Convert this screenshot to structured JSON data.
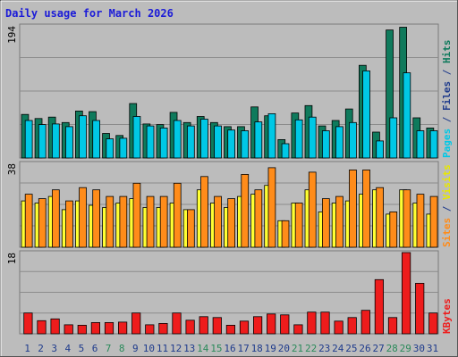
{
  "chart_data": {
    "type": "bar",
    "title": "Daily usage for March 2026",
    "categories": [
      "1",
      "2",
      "3",
      "4",
      "5",
      "6",
      "7",
      "8",
      "9",
      "10",
      "11",
      "12",
      "13",
      "14",
      "15",
      "16",
      "17",
      "18",
      "19",
      "20",
      "21",
      "22",
      "23",
      "24",
      "25",
      "26",
      "27",
      "28",
      "29",
      "30",
      "31"
    ],
    "weekend_days": [
      "7",
      "8",
      "14",
      "15",
      "21",
      "22",
      "28",
      "29"
    ],
    "panels": [
      {
        "max_label": "194",
        "ylim": [
          0,
          194
        ],
        "series": [
          {
            "name": "Hits",
            "color": "#0f7a5c",
            "values": [
              64,
              58,
              60,
              52,
              69,
              68,
              36,
              33,
              80,
              50,
              49,
              67,
              52,
              61,
              52,
              46,
              46,
              75,
              62,
              27,
              66,
              77,
              47,
              55,
              72,
              136,
              38,
              188,
              192,
              59,
              44
            ]
          },
          {
            "name": "Files",
            "color": "#00c8e6",
            "values": [
              55,
              49,
              50,
              46,
              62,
              55,
              28,
              29,
              61,
              47,
              44,
              55,
              47,
              57,
              47,
              41,
              40,
              53,
              65,
              21,
              56,
              60,
              40,
              46,
              52,
              128,
              25,
              59,
              125,
              40,
              40
            ]
          },
          {
            "name": "Pages",
            "color": "#00c8e6",
            "values": []
          }
        ],
        "side_label": [
          {
            "text": "Pages",
            "color": "#00c8e6"
          },
          {
            "text": " / ",
            "color": "#1f3b8c"
          },
          {
            "text": "Files",
            "color": "#1f3b8c"
          },
          {
            "text": " / ",
            "color": "#1f3b8c"
          },
          {
            "text": "Hits",
            "color": "#0f7a5c"
          }
        ]
      },
      {
        "max_label": "38",
        "ylim": [
          0,
          38
        ],
        "series": [
          {
            "name": "Visits",
            "color": "#ffff33",
            "values": [
              21,
              20,
              23,
              17,
              21,
              19,
              18,
              20,
              22,
              18,
              18,
              20,
              17,
              26,
              20,
              18,
              23,
              24,
              28,
              12,
              20,
              26,
              16,
              20,
              21,
              24,
              26,
              15,
              26,
              20,
              15
            ]
          },
          {
            "name": "Sites",
            "color": "#ff8c1a",
            "values": [
              24,
              22,
              26,
              21,
              27,
              26,
              23,
              23,
              29,
              23,
              23,
              29,
              17,
              32,
              23,
              22,
              33,
              26,
              36,
              12,
              20,
              34,
              22,
              23,
              35,
              35,
              27,
              16,
              26,
              24,
              23
            ]
          }
        ],
        "side_label": [
          {
            "text": "Sites",
            "color": "#ff8c1a"
          },
          {
            "text": " / ",
            "color": "#1f3b8c"
          },
          {
            "text": "Visits",
            "color": "#e8e800"
          }
        ]
      },
      {
        "max_label": "18",
        "ylim": [
          0,
          18
        ],
        "series": [
          {
            "name": "KBytes",
            "color": "#ee1c1c",
            "values": [
              4.6,
              2.9,
              3.3,
              2.0,
              1.9,
              2.5,
              2.5,
              2.6,
              4.6,
              2.0,
              2.3,
              4.6,
              3.0,
              3.8,
              3.6,
              1.9,
              2.8,
              3.8,
              4.4,
              4.2,
              2.0,
              4.8,
              4.8,
              2.8,
              3.6,
              5.2,
              12.0,
              3.6,
              18.0,
              11.2,
              4.6
            ]
          }
        ],
        "side_label": [
          {
            "text": "KBytes",
            "color": "#ee1c1c"
          }
        ]
      }
    ],
    "grid": true,
    "colors": {
      "background": "#bcbcbc",
      "frame": "#808080",
      "title_color": "#1b1bd8",
      "day_weekday_color": "#1f3b8c",
      "day_weekend_color": "#2a8a5a"
    }
  }
}
